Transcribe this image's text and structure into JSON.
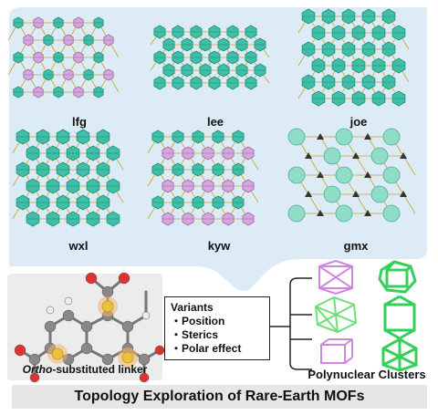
{
  "networks": [
    {
      "label": "lfg"
    },
    {
      "label": "lee"
    },
    {
      "label": "joe"
    },
    {
      "label": "wxl"
    },
    {
      "label": "kyw"
    },
    {
      "label": "gmx"
    }
  ],
  "linker": {
    "caption_italic": "Ortho",
    "caption_rest": "-substituted linker"
  },
  "variants": {
    "title": "Variants",
    "items": [
      "・Position",
      "・Sterics",
      "・Polar effect"
    ]
  },
  "clusters_caption": "Polynuclear Clusters",
  "footer_title": "Topology Exploration of Rare-Earth MOFs",
  "colors": {
    "panel": "#dcebf6",
    "teal": "#3fbfa8",
    "teal_dark": "#1f8f7b",
    "pink": "#d7a6de",
    "linker_yellow": "#e8c33a",
    "cluster_green": "#35d05a",
    "cluster_pink": "#cc88dd"
  }
}
